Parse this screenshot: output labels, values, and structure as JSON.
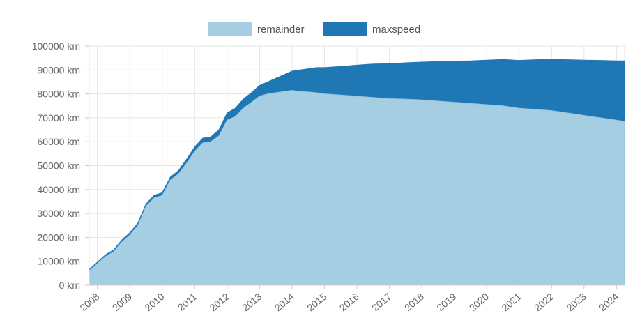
{
  "chart_data": {
    "type": "area",
    "stacked": true,
    "legend": {
      "placement": "top-center"
    },
    "grid": true,
    "xlim": [
      2007.75,
      2024.25
    ],
    "ylim": [
      0,
      100000
    ],
    "y_ticks": [
      0,
      10000,
      20000,
      30000,
      40000,
      50000,
      60000,
      70000,
      80000,
      90000,
      100000
    ],
    "y_unit": "km",
    "x_tick_labels": [
      "2008",
      "2009",
      "2010",
      "2011",
      "2012",
      "2013",
      "2014",
      "2015",
      "2016",
      "2017",
      "2018",
      "2019",
      "2020",
      "2021",
      "2022",
      "2023",
      "2024"
    ],
    "x": [
      2007.75,
      2008.0,
      2008.25,
      2008.5,
      2008.75,
      2009.0,
      2009.25,
      2009.5,
      2009.75,
      2010.0,
      2010.25,
      2010.5,
      2010.75,
      2011.0,
      2011.25,
      2011.5,
      2011.75,
      2012.0,
      2012.25,
      2012.5,
      2012.75,
      2013.0,
      2013.25,
      2013.5,
      2013.75,
      2014.0,
      2014.25,
      2014.5,
      2014.75,
      2015.0,
      2015.5,
      2016.0,
      2016.5,
      2017.0,
      2017.5,
      2018.0,
      2018.5,
      2019.0,
      2019.5,
      2020.0,
      2020.5,
      2021.0,
      2021.5,
      2022.0,
      2022.5,
      2023.0,
      2023.5,
      2024.0,
      2024.25
    ],
    "series": [
      {
        "name": "remainder",
        "color": "#a6cee3",
        "values": [
          6000,
          9000,
          12000,
          14000,
          18000,
          21000,
          25000,
          33000,
          36500,
          37500,
          44000,
          46500,
          51000,
          56000,
          59500,
          60000,
          62500,
          69000,
          70500,
          74000,
          76500,
          79000,
          80000,
          80500,
          81000,
          81500,
          81000,
          80800,
          80500,
          80000,
          79500,
          79000,
          78500,
          78000,
          77800,
          77500,
          77000,
          76500,
          76000,
          75500,
          75000,
          74000,
          73500,
          73000,
          72000,
          71000,
          70000,
          69000,
          68500
        ]
      },
      {
        "name": "maxspeed",
        "color": "#1f78b4",
        "values": [
          600,
          600,
          700,
          700,
          800,
          900,
          1000,
          1000,
          1100,
          1200,
          1200,
          1400,
          1600,
          1800,
          2000,
          2000,
          2500,
          3000,
          3500,
          3800,
          4000,
          4500,
          5000,
          6000,
          7000,
          8000,
          9000,
          9700,
          10500,
          11000,
          12000,
          13000,
          14000,
          14600,
          15200,
          15800,
          16500,
          17200,
          17800,
          18600,
          19400,
          20000,
          20800,
          21400,
          22300,
          23100,
          24000,
          24800,
          25300
        ]
      }
    ]
  }
}
